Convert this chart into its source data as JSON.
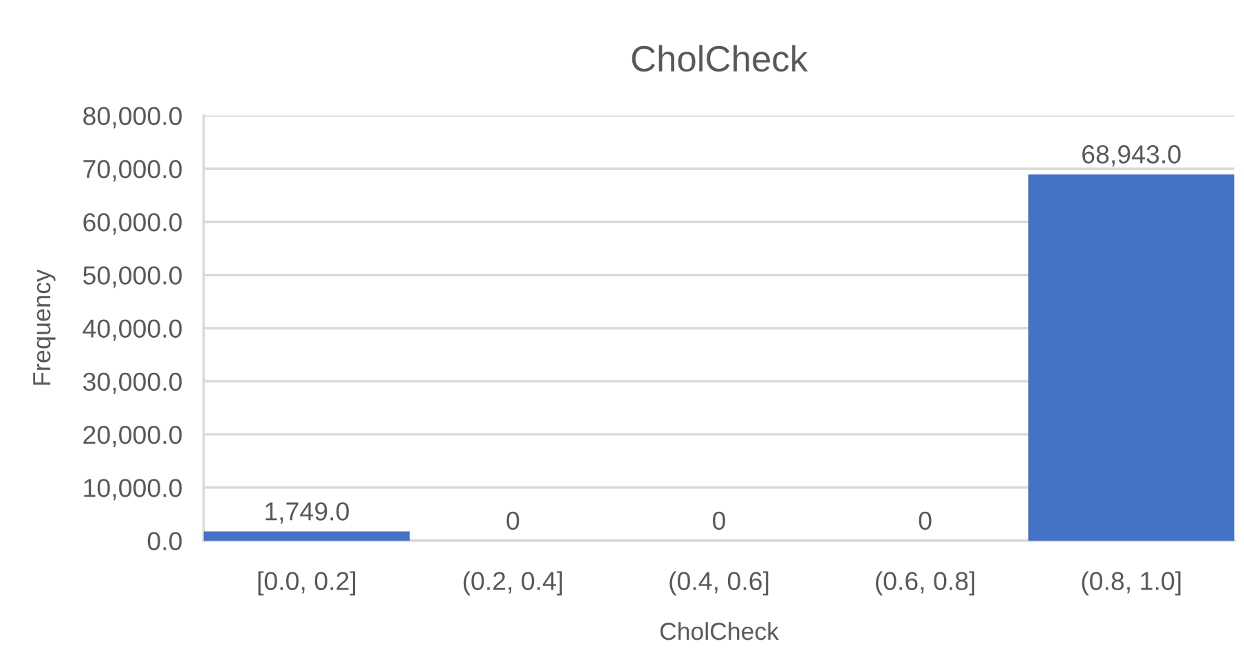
{
  "chart_data": {
    "type": "bar",
    "title": "CholCheck",
    "xlabel": "CholCheck",
    "ylabel": "Frequency",
    "categories": [
      "[0.0, 0.2]",
      "(0.2, 0.4]",
      "(0.4, 0.6]",
      "(0.6, 0.8]",
      "(0.8, 1.0]"
    ],
    "values": [
      1749,
      0,
      0,
      0,
      68943
    ],
    "color": "#4472c4",
    "value_labels": [
      "1,749.0",
      "0",
      "0",
      "0",
      "68,943.0"
    ],
    "ylim": [
      0,
      80000
    ],
    "yticks": [
      {
        "value": 0,
        "label": "0.0"
      },
      {
        "value": 10000,
        "label": "10,000.0"
      },
      {
        "value": 20000,
        "label": "20,000.0"
      },
      {
        "value": 30000,
        "label": "30,000.0"
      },
      {
        "value": 40000,
        "label": "40,000.0"
      },
      {
        "value": 50000,
        "label": "50,000.0"
      },
      {
        "value": 60000,
        "label": "60,000.0"
      },
      {
        "value": 70000,
        "label": "70,000.0"
      },
      {
        "value": 80000,
        "label": "80,000.0"
      }
    ],
    "grid": "y"
  }
}
